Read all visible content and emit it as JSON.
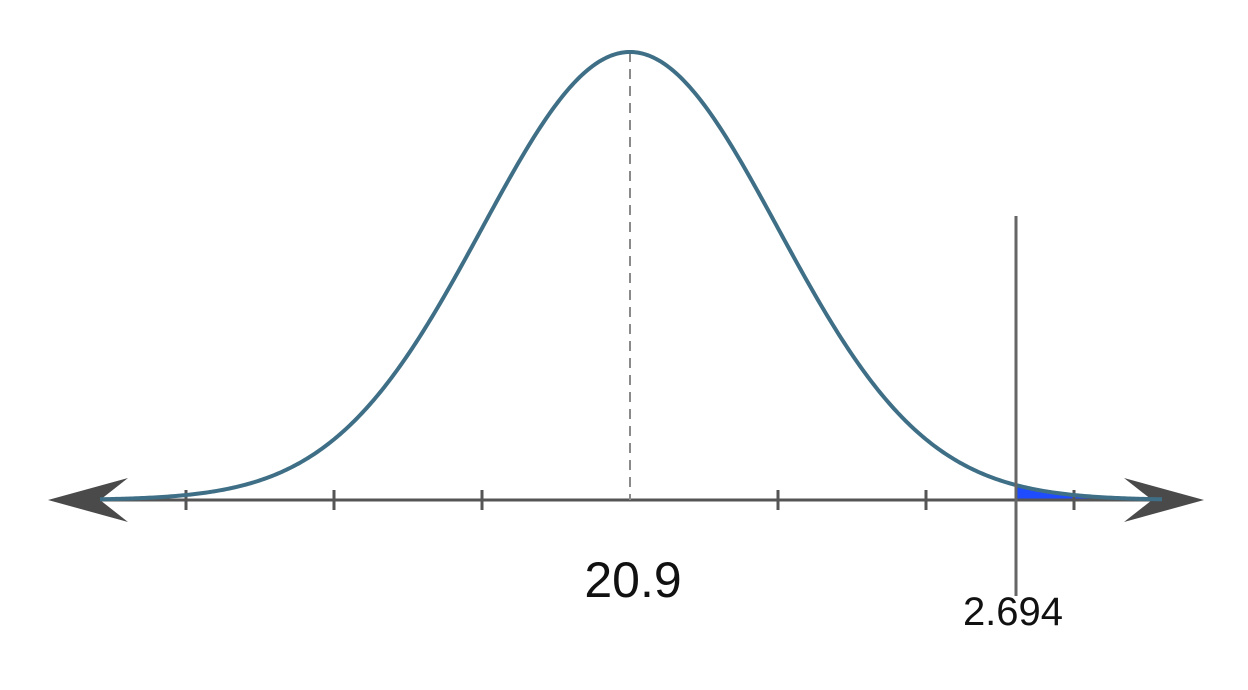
{
  "diagram": {
    "mean_label": "20.9",
    "cutoff_label": "2.694",
    "shaded_region": "right-tail",
    "colors": {
      "curve": "#3f6f86",
      "axis": "#555555",
      "arrows": "#4a4a4a",
      "shade": "#1f4cff",
      "cutoff_line": "#666666",
      "mean_line": "#8a8a8a"
    }
  }
}
